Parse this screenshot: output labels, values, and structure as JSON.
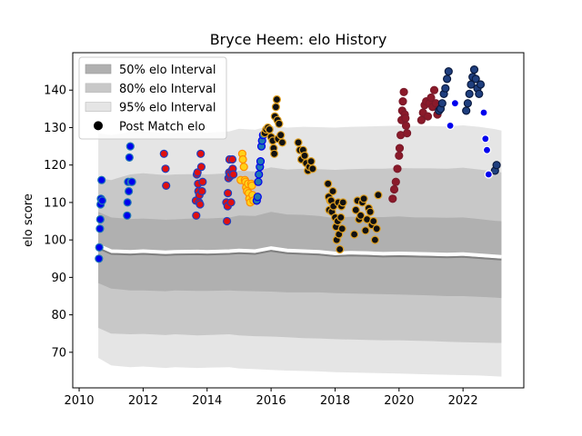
{
  "chart_data": {
    "type": "scatter",
    "title": "Bryce Heem: elo History",
    "xlabel": "",
    "ylabel": "elo score",
    "xlim": [
      2009.8,
      2023.9
    ],
    "ylim": [
      60.5,
      150
    ],
    "xticks": [
      2010,
      2012,
      2014,
      2016,
      2018,
      2020,
      2022
    ],
    "yticks": [
      70,
      80,
      90,
      100,
      110,
      120,
      130,
      140
    ],
    "grid": false,
    "legend": {
      "position": "top-left",
      "entries": [
        {
          "label": "50% elo Interval",
          "color": "#b0b0b0"
        },
        {
          "label": "80% elo Interval",
          "color": "#c8c8c8"
        },
        {
          "label": "95% elo Interval",
          "color": "#e5e5e5"
        },
        {
          "label": "Post Match elo",
          "color": "#000000"
        }
      ]
    },
    "intervals": {
      "x": [
        2010.6,
        2011.0,
        2011.6,
        2012.0,
        2012.7,
        2013.0,
        2013.7,
        2014.0,
        2014.7,
        2015.0,
        2015.5,
        2016.0,
        2016.5,
        2017.0,
        2017.5,
        2018.0,
        2018.5,
        2019.0,
        2019.5,
        2020.0,
        2020.5,
        2021.0,
        2021.5,
        2022.0,
        2022.5,
        2023.0,
        2023.2
      ],
      "mean": [
        98.5,
        97.0,
        96.8,
        97.0,
        96.7,
        96.8,
        96.9,
        96.8,
        97.0,
        97.2,
        97.0,
        97.8,
        97.2,
        97.0,
        96.8,
        96.4,
        96.6,
        96.5,
        96.3,
        96.4,
        96.3,
        96.2,
        96.1,
        96.2,
        95.9,
        95.6,
        95.5
      ],
      "band50_lo": [
        88.5,
        87.0,
        86.5,
        86.5,
        86.3,
        86.5,
        86.4,
        86.4,
        86.5,
        86.4,
        86.3,
        86.2,
        86.0,
        86.0,
        86.0,
        85.8,
        85.7,
        85.6,
        85.5,
        85.4,
        85.3,
        85.2,
        85.0,
        85.0,
        84.8,
        84.6,
        84.5
      ],
      "band50_hi": [
        107.5,
        106.0,
        105.6,
        105.7,
        105.4,
        105.5,
        105.8,
        105.7,
        106.0,
        106.5,
        106.4,
        107.5,
        106.8,
        106.7,
        106.4,
        105.8,
        106.2,
        106.1,
        106.1,
        106.3,
        106.0,
        106.0,
        105.9,
        106.0,
        105.6,
        105.1,
        105.0
      ],
      "band80_lo": [
        76.5,
        75.0,
        74.8,
        74.9,
        74.6,
        74.8,
        74.5,
        74.6,
        74.8,
        74.5,
        74.3,
        74.2,
        74.0,
        73.8,
        73.7,
        73.5,
        73.4,
        73.3,
        73.2,
        73.2,
        73.1,
        73.0,
        72.8,
        72.7,
        72.6,
        72.5,
        72.5
      ],
      "band80_hi": [
        116.5,
        116.0,
        117.5,
        117.8,
        117.3,
        117.5,
        117.6,
        117.5,
        117.8,
        118.5,
        118.3,
        119.4,
        118.8,
        119.0,
        118.9,
        118.7,
        118.9,
        119.0,
        119.0,
        119.2,
        119.1,
        119.1,
        119.0,
        119.3,
        118.8,
        118.3,
        118.0
      ],
      "band95_lo": [
        68.5,
        66.5,
        66.0,
        66.2,
        65.8,
        66.0,
        65.8,
        65.9,
        66.0,
        65.7,
        65.5,
        65.3,
        65.1,
        65.0,
        64.9,
        64.7,
        64.6,
        64.5,
        64.4,
        64.3,
        64.2,
        64.1,
        64.0,
        63.9,
        63.8,
        63.6,
        63.5
      ],
      "band95_hi": [
        128.5,
        128.0,
        128.8,
        129.0,
        128.5,
        128.6,
        128.8,
        128.6,
        129.0,
        129.7,
        129.4,
        130.5,
        130.0,
        130.2,
        130.1,
        130.0,
        130.2,
        130.3,
        130.4,
        130.5,
        130.4,
        130.4,
        130.3,
        130.6,
        130.2,
        129.6,
        129.2
      ]
    },
    "series": [
      {
        "color": "#0000ee",
        "edge": "#1f77b4",
        "x": [
          2010.62,
          2010.63,
          2010.65,
          2010.66,
          2010.67,
          2010.68,
          2010.7,
          2010.72,
          2011.5,
          2011.51,
          2011.53,
          2011.55,
          2011.57,
          2011.6,
          2011.62,
          2011.65
        ],
        "y": [
          95,
          98,
          103,
          105.5,
          109.5,
          111,
          116,
          110.5,
          106.5,
          110,
          115.5,
          113,
          122,
          125,
          115.5,
          115.5
        ]
      },
      {
        "color": "#e01010",
        "edge": "#1f3fbf",
        "x": [
          2012.65,
          2012.7,
          2012.72,
          2013.65,
          2013.66,
          2013.68,
          2013.7,
          2013.72,
          2013.73,
          2013.75,
          2013.76,
          2013.78,
          2013.8,
          2013.82,
          2013.84,
          2013.86,
          2014.6,
          2014.62,
          2014.64,
          2014.65,
          2014.67,
          2014.69,
          2014.7,
          2014.72,
          2014.73,
          2014.75,
          2014.77,
          2014.79,
          2014.8,
          2014.82
        ],
        "y": [
          123,
          119,
          114.5,
          110.5,
          106.5,
          117.5,
          118,
          115,
          113,
          110,
          112,
          109.5,
          123,
          119.5,
          113,
          115.5,
          110,
          105,
          109,
          112.5,
          116.5,
          118,
          121.5,
          117,
          117.5,
          110,
          118.5,
          121.5,
          119,
          117.5
        ]
      },
      {
        "color": "#ffd21a",
        "edge": "#ff8c00",
        "x": [
          2015.05,
          2015.1,
          2015.12,
          2015.15,
          2015.18,
          2015.2,
          2015.22,
          2015.25,
          2015.28,
          2015.3,
          2015.32,
          2015.35,
          2015.38,
          2015.4,
          2015.42,
          2015.45
        ],
        "y": [
          116,
          123,
          121.5,
          119.5,
          116,
          115.5,
          114,
          113,
          115,
          112.5,
          111,
          110,
          115,
          114.5,
          112,
          110.5
        ]
      },
      {
        "color": "#1f77b4",
        "edge": "#0000ee",
        "x": [
          2015.55,
          2015.58,
          2015.6,
          2015.62,
          2015.65,
          2015.67,
          2015.7,
          2015.72,
          2015.75
        ],
        "y": [
          110.5,
          111.5,
          115.5,
          117.5,
          119.5,
          121,
          125,
          126.5,
          128
        ]
      },
      {
        "color": "#111111",
        "edge": "#e0a020",
        "x": [
          2015.8,
          2015.85,
          2015.9,
          2015.95,
          2016.0,
          2016.05,
          2016.08,
          2016.1,
          2016.12,
          2016.15,
          2016.18,
          2016.2,
          2016.22,
          2016.25,
          2016.3,
          2016.35,
          2016.85,
          2016.9,
          2016.95,
          2017.0,
          2017.05,
          2017.1,
          2017.15,
          2017.2,
          2017.25,
          2017.3,
          2017.78,
          2017.8,
          2017.82,
          2017.85,
          2017.88,
          2017.9,
          2017.93,
          2017.95,
          2018.0,
          2018.03,
          2018.05,
          2018.08,
          2018.1,
          2018.12,
          2018.15,
          2018.18,
          2018.2,
          2018.22,
          2018.25,
          2018.6,
          2018.65,
          2018.7,
          2018.75,
          2018.8,
          2018.85,
          2018.9,
          2018.95,
          2019.0,
          2019.05,
          2019.1,
          2019.15,
          2019.2,
          2019.25,
          2019.3,
          2019.35
        ],
        "y": [
          128.5,
          129.5,
          130,
          129.5,
          127.5,
          126.5,
          124.5,
          123,
          133,
          135.5,
          137.5,
          132,
          127,
          131,
          128,
          126,
          126,
          124,
          121.5,
          124,
          122.5,
          120.5,
          118.5,
          119.5,
          121,
          119,
          115,
          111.5,
          108,
          110.5,
          110.5,
          107.5,
          113,
          109,
          106,
          103.5,
          100,
          105,
          110,
          101.5,
          97.5,
          106,
          109,
          103,
          110,
          101.5,
          108,
          110.5,
          105.5,
          106.5,
          110,
          111,
          102.5,
          105.5,
          108.5,
          107.5,
          104,
          105,
          100,
          103,
          112
        ]
      },
      {
        "color": "#8b1a2a",
        "edge": "#7a1a2a",
        "x": [
          2019.8,
          2019.85,
          2019.9,
          2019.95,
          2020.0,
          2020.02,
          2020.05,
          2020.08,
          2020.1,
          2020.12,
          2020.15,
          2020.18,
          2020.2,
          2020.22,
          2020.25,
          2020.7,
          2020.75,
          2020.8,
          2020.85,
          2020.9,
          2020.95,
          2021.0,
          2021.05,
          2021.1,
          2021.15,
          2021.2
        ],
        "y": [
          111,
          113.5,
          115.5,
          119,
          122.5,
          124.5,
          128,
          132,
          134.5,
          137,
          139.5,
          133.5,
          132.5,
          130.5,
          128.5,
          132,
          134,
          136,
          137,
          133,
          136.5,
          138,
          135.5,
          140,
          136.5,
          133.5
        ]
      },
      {
        "color": "#1f3f7f",
        "edge": "#0a1a3f",
        "x": [
          2021.25,
          2021.3,
          2021.35,
          2021.4,
          2021.45,
          2021.5,
          2021.55,
          2022.1,
          2022.15,
          2022.2,
          2022.25,
          2022.3,
          2022.35,
          2022.4,
          2022.45,
          2022.5,
          2022.55,
          2023.0,
          2023.05
        ],
        "y": [
          134.5,
          135,
          136.5,
          139,
          140.5,
          143,
          145,
          134.5,
          136.5,
          139,
          141.5,
          143.5,
          145.5,
          143,
          140.5,
          139,
          141.5,
          118.5,
          120
        ]
      },
      {
        "color": "#0000ee",
        "edge": "#ffffff",
        "x": [
          2021.6,
          2021.75,
          2022.65,
          2022.7,
          2022.75,
          2022.8
        ],
        "y": [
          130.5,
          136.5,
          134,
          127,
          124,
          117.5
        ]
      }
    ]
  }
}
